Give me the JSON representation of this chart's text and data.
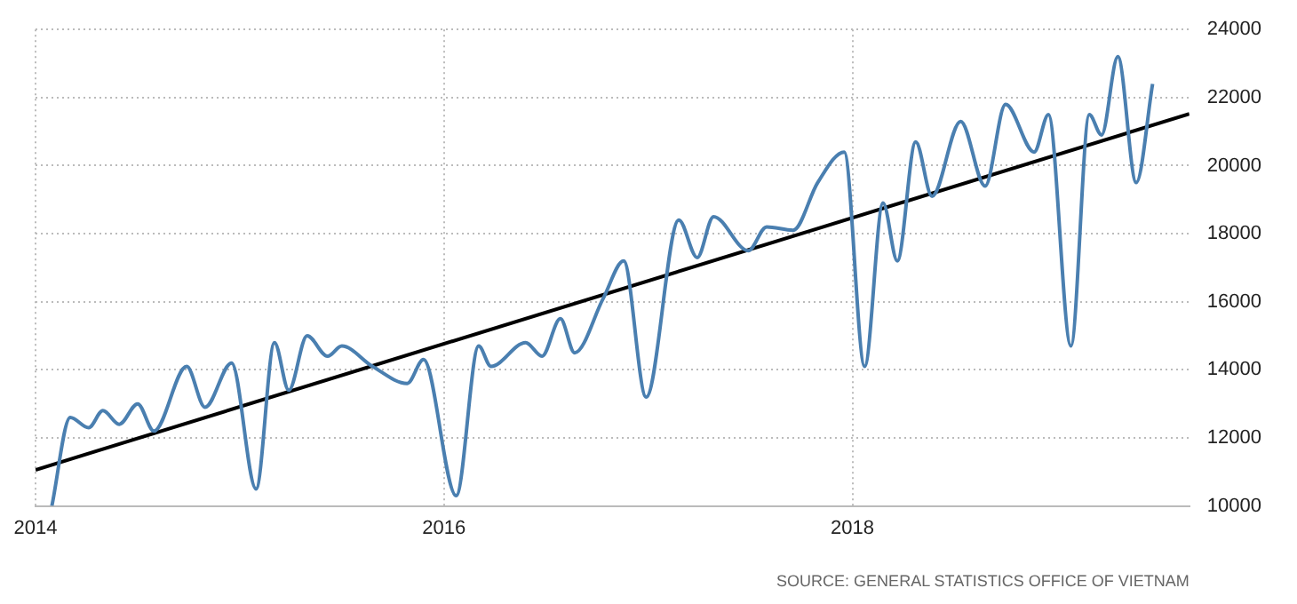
{
  "chart_data": {
    "type": "line",
    "xlim": [
      2014,
      2019.65
    ],
    "xticks": [
      2014,
      2016,
      2018
    ],
    "ylim": [
      10000,
      24000
    ],
    "yticks": [
      10000,
      12000,
      14000,
      16000,
      18000,
      20000,
      22000,
      24000
    ],
    "grid": true,
    "legend": false,
    "marker": "none",
    "line_style": "solid",
    "annotations": [
      "SOURCE: GENERAL STATISTICS OFFICE OF VIETNAM"
    ],
    "series": [
      {
        "color": "#4a7fb0",
        "x": [
          2014.08,
          2014.17,
          2014.26,
          2014.33,
          2014.41,
          2014.5,
          2014.58,
          2014.74,
          2014.83,
          2014.96,
          2015.08,
          2015.17,
          2015.24,
          2015.33,
          2015.43,
          2015.5,
          2015.65,
          2015.82,
          2015.9,
          2016.06,
          2016.17,
          2016.23,
          2016.4,
          2016.48,
          2016.57,
          2016.64,
          2016.78,
          2016.88,
          2016.99,
          2017.15,
          2017.24,
          2017.32,
          2017.49,
          2017.58,
          2017.71,
          2017.83,
          2017.96,
          2018.06,
          2018.15,
          2018.22,
          2018.31,
          2018.39,
          2018.53,
          2018.65,
          2018.75,
          2018.89,
          2018.96,
          2019.07,
          2019.16,
          2019.22,
          2019.3,
          2019.39,
          2019.47
        ],
        "values": [
          10000,
          12600,
          12300,
          12800,
          12400,
          13000,
          12200,
          14100,
          12900,
          14200,
          10500,
          14800,
          13400,
          15000,
          14400,
          14700,
          14100,
          13600,
          14300,
          10300,
          14700,
          14100,
          14800,
          14400,
          15500,
          14500,
          16100,
          17200,
          13200,
          18400,
          17300,
          18500,
          17500,
          18200,
          18100,
          19500,
          20400,
          14100,
          18900,
          17200,
          20700,
          19100,
          21300,
          19400,
          21800,
          20400,
          21500,
          14700,
          21500,
          20900,
          23200,
          19500,
          22400
        ]
      },
      {
        "type": "line",
        "color": "#000000",
        "x": [
          2014,
          2019.65
        ],
        "values": [
          11060,
          21520
        ]
      }
    ]
  }
}
